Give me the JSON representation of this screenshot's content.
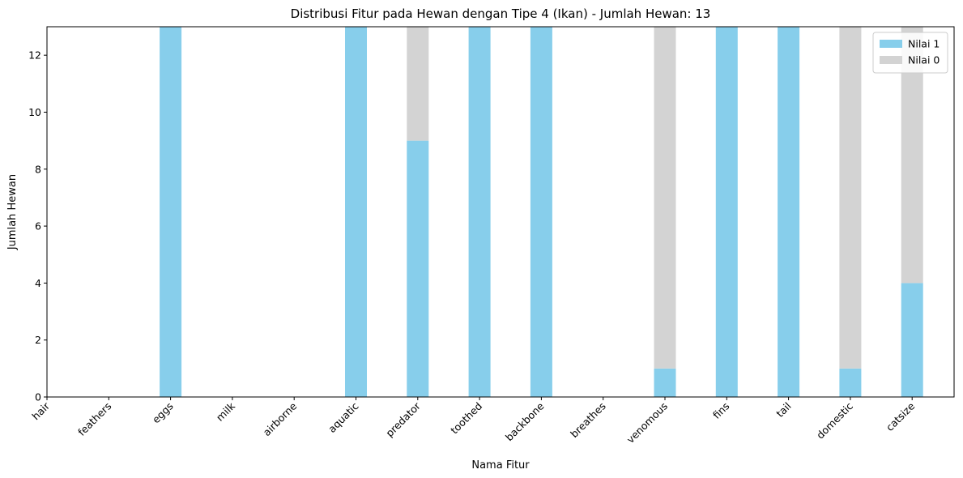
{
  "chart_data": {
    "type": "bar",
    "title": "Distribusi Fitur pada Hewan dengan Tipe 4 (Ikan) - Jumlah Hewan: 13",
    "xlabel": "Nama Fitur",
    "ylabel": "Jumlah Hewan",
    "ylim": [
      0,
      13
    ],
    "yticks": [
      0,
      2,
      4,
      6,
      8,
      10,
      12
    ],
    "stacked": true,
    "grid": false,
    "legend_position": "top-right",
    "categories": [
      "hair",
      "feathers",
      "eggs",
      "milk",
      "airborne",
      "aquatic",
      "predator",
      "toothed",
      "backbone",
      "breathes",
      "venomous",
      "fins",
      "tail",
      "domestic",
      "catsize"
    ],
    "series": [
      {
        "name": "Nilai 1",
        "color": "#87ceeb",
        "values": [
          0,
          0,
          13,
          0,
          0,
          13,
          9,
          13,
          13,
          0,
          1,
          13,
          13,
          1,
          4
        ]
      },
      {
        "name": "Nilai 0",
        "color": "#d3d3d3",
        "values": [
          0,
          0,
          0,
          0,
          0,
          0,
          4,
          0,
          0,
          0,
          12,
          0,
          0,
          12,
          9
        ]
      }
    ]
  }
}
